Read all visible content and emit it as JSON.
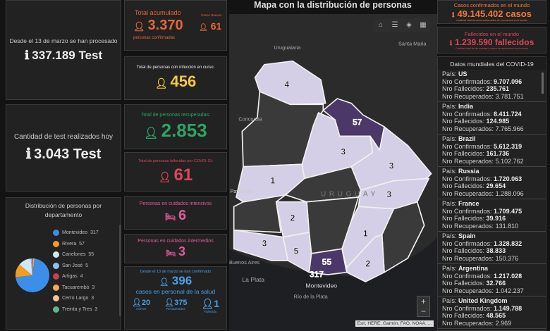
{
  "left": {
    "processed": {
      "caption": "Desde el 13 de marzo se han procesado",
      "value": "337.189 Test"
    },
    "today": {
      "caption": "Cantidad de test realizados hoy",
      "value": "3.043 Test"
    },
    "distribution": {
      "title": "Distribución de personas por departamento",
      "items": [
        {
          "name": "Montevideo",
          "value": 317,
          "color": "#3b8eea"
        },
        {
          "name": "Rivera",
          "value": 57,
          "color": "#f39c1f"
        },
        {
          "name": "Canelones",
          "value": 55,
          "color": "#cfe8f7"
        },
        {
          "name": "San José",
          "value": 5,
          "color": "#8fc1f0"
        },
        {
          "name": "Artigas",
          "value": 4,
          "color": "#c9404e"
        },
        {
          "name": "Tacuarembó",
          "value": 3,
          "color": "#f5a85a"
        },
        {
          "name": "Cerro Largo",
          "value": 3,
          "color": "#f3c497"
        },
        {
          "name": "Treinta y Tres",
          "value": 3,
          "color": "#5fb58e"
        }
      ]
    }
  },
  "mid": {
    "total": {
      "title": "Total acumulado",
      "value": "3.370",
      "sub": "personas confirmadas",
      "new_label": "Casos Nuevos",
      "new_value": "61"
    },
    "active": {
      "title": "Total de personas con infección en curso:",
      "value": "456"
    },
    "recovered": {
      "title": "Total de personas recuperadas:",
      "value": "2.853"
    },
    "deaths": {
      "title": "Total de personas fallecidas por COVID-19:",
      "value": "61"
    },
    "icu": {
      "title": "Personas en cuidados intensivos",
      "value": "6"
    },
    "inter": {
      "title": "Personas en cuidados intermedios",
      "value": "3"
    },
    "health": {
      "title": "Desde el 13 de marzo se han confirmado",
      "value": "396",
      "sub": "casos en personal de la salud",
      "stats": [
        {
          "value": "20",
          "label": "Activos"
        },
        {
          "value": "375",
          "label": "Recuperados"
        },
        {
          "value": "1",
          "label": "Fallecido"
        }
      ]
    }
  },
  "map": {
    "title": "Mapa con la distribución de personas",
    "places": {
      "uruguaiana": "Uruguaiana",
      "santa_maria": "Santa Maria",
      "concordia": "Concordia",
      "uruguay": "URUGUAY",
      "la_plata": "La Plata",
      "rio": "Río de la Plata",
      "montevideo": "Montevideo",
      "buenos": "Buenos Aires",
      "paysandu": "Paysandú"
    },
    "counts": {
      "artigas": "4",
      "rivera": "57",
      "tacuarembo": "3",
      "cerro": "3",
      "treinta": "3",
      "paysandu": "1",
      "soriano": "2",
      "colonia": "3",
      "sanjose": "5",
      "canelones": "55",
      "montevideo": "317",
      "lavalleja": "1",
      "maldonado": "2"
    },
    "attribution": "Esri, HERE, Garmin, FAO, NOAA, ...",
    "zoom_in": "+",
    "zoom_out": "−"
  },
  "world": {
    "confirmed": {
      "title": "Casos confirmados en el mundo",
      "value": "49.145.402 casos",
      "sub": "Cantidad total de casos confirmados de coronavirus en el mundo",
      "color": "#f07a3a"
    },
    "deaths": {
      "title": "Fallecidos en el mundo",
      "value": "1.239.590 fallecidos",
      "sub": "Cantidad total de las muertes a causa de coronavirus en el mundo",
      "color": "#e0455a"
    },
    "list_title": "Datos mundiales del COVID-19",
    "labels": {
      "country": "País:",
      "confirmed": "Nro Confirmados:",
      "deaths": "Nro Fallecidos:",
      "recovered": "Nro Recuperados:"
    },
    "countries": [
      {
        "name": "US",
        "confirmed": "9.707.096",
        "deaths": "235.761",
        "recovered": "3.781.751"
      },
      {
        "name": "India",
        "confirmed": "8.411.724",
        "deaths": "124.985",
        "recovered": "7.765.966"
      },
      {
        "name": "Brazil",
        "confirmed": "5.612.319",
        "deaths": "161.736",
        "recovered": "5.102.762"
      },
      {
        "name": "Russia",
        "confirmed": "1.720.063",
        "deaths": "29.654",
        "recovered": "1.288.096"
      },
      {
        "name": "France",
        "confirmed": "1.709.475",
        "deaths": "39.916",
        "recovered": "131.810"
      },
      {
        "name": "Spain",
        "confirmed": "1.328.832",
        "deaths": "38.833",
        "recovered": "150.376"
      },
      {
        "name": "Argentina",
        "confirmed": "1.217.028",
        "deaths": "32.766",
        "recovered": "1.042.237"
      },
      {
        "name": "United Kingdom",
        "confirmed": "1.149.788",
        "deaths": "48.565",
        "recovered": "2.969"
      }
    ]
  }
}
